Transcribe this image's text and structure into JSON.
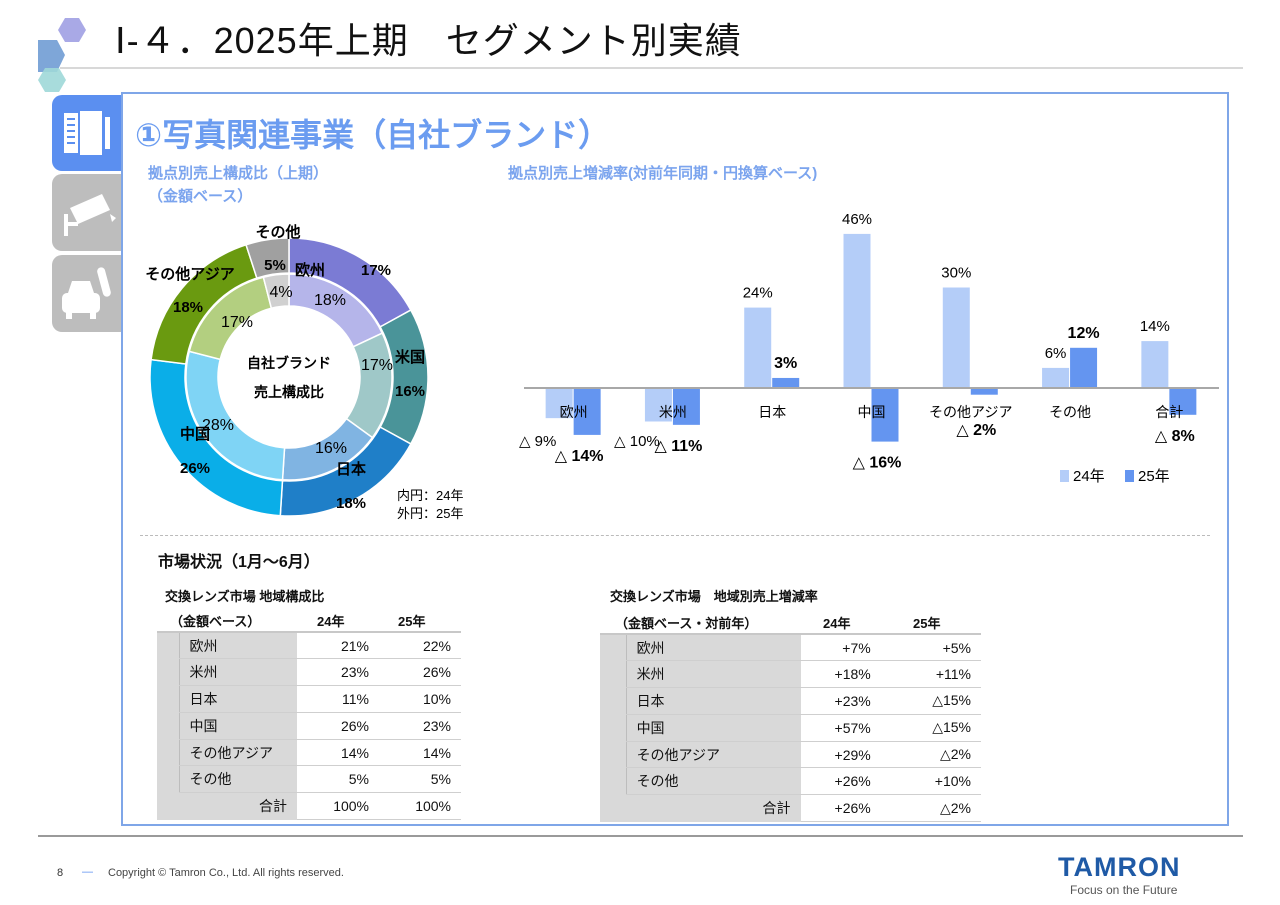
{
  "header": {
    "title": "Ⅰ-４．2025年上期　セグメント別実績"
  },
  "section": {
    "title": "①写真関連事業（自社ブランド）"
  },
  "tabs": [
    {
      "name": "photo-lens",
      "active": true
    },
    {
      "name": "surveillance-camera",
      "active": false
    },
    {
      "name": "mobility",
      "active": false
    }
  ],
  "colors": {
    "accent": "#5b8ff0",
    "title_blue": "#6b9cf0",
    "bar_24": "#b4cdf8",
    "bar_25": "#6495f0"
  },
  "donut_subtitle_1": "拠点別売上構成比（上期）",
  "donut_subtitle_2": "（金額ベース）",
  "bar_subtitle": "拠点別売上増減率(対前年同期・円換算ベース)",
  "chart_data": [
    {
      "type": "pie",
      "variant": "donut",
      "center_label_1": "自社ブランド",
      "center_label_2": "売上構成比",
      "note_inner": "内円：24年",
      "note_outer": "外円：25年",
      "categories": [
        "欧州",
        "米国",
        "日本",
        "中国",
        "その他アジア",
        "その他"
      ],
      "series": [
        {
          "name": "24年",
          "ring": "inner",
          "values": [
            18,
            17,
            16,
            28,
            17,
            4
          ],
          "labels": [
            "18%",
            "17%",
            "16%",
            "28%",
            "17%",
            "4%"
          ],
          "colors": [
            "#b5b5ea",
            "#9fc8c8",
            "#80b4e2",
            "#7fd4f5",
            "#b3cf80",
            "#d0d0d0"
          ]
        },
        {
          "name": "25年",
          "ring": "outer",
          "values": [
            17,
            16,
            18,
            26,
            18,
            5
          ],
          "labels": [
            "17%",
            "16%",
            "18%",
            "26%",
            "18%",
            "5%"
          ],
          "colors": [
            "#7b7bd4",
            "#4a9499",
            "#1f7fc8",
            "#0aaee8",
            "#6a9a10",
            "#a0a0a0"
          ]
        }
      ]
    },
    {
      "type": "bar",
      "categories": [
        "欧州",
        "米州",
        "日本",
        "中国",
        "その他アジア",
        "その他",
        "合計"
      ],
      "series": [
        {
          "name": "24年",
          "values": [
            -9,
            -10,
            24,
            46,
            30,
            6,
            14
          ],
          "labels": [
            "△ 9%",
            "△ 10%",
            "24%",
            "46%",
            "30%",
            "6%",
            "14%"
          ]
        },
        {
          "name": "25年",
          "values": [
            -14,
            -11,
            3,
            -16,
            -2,
            12,
            -8
          ],
          "labels": [
            "△ 14%",
            "△ 11%",
            "3%",
            "△ 16%",
            "△ 2%",
            "12%",
            "△ 8%"
          ]
        }
      ],
      "legend": [
        "24年",
        "25年"
      ],
      "legend_position": "bottom-right",
      "grid": false
    }
  ],
  "market": {
    "title": "市場状況（1月～6月）",
    "composition": {
      "title": "交換レンズ市場 地域構成比",
      "subtitle": "（金額ベース）",
      "col1": "24年",
      "col2": "25年",
      "rows": [
        [
          "欧州",
          "21%",
          "22%"
        ],
        [
          "米州",
          "23%",
          "26%"
        ],
        [
          "日本",
          "11%",
          "10%"
        ],
        [
          "中国",
          "26%",
          "23%"
        ],
        [
          "その他アジア",
          "14%",
          "14%"
        ],
        [
          "その他",
          "5%",
          "5%"
        ]
      ],
      "total": [
        "合計",
        "100%",
        "100%"
      ]
    },
    "growth": {
      "title": "交換レンズ市場　地域別売上増減率",
      "subtitle": "（金額ベース・対前年）",
      "col1": "24年",
      "col2": "25年",
      "rows": [
        [
          "欧州",
          "+7%",
          "+5%"
        ],
        [
          "米州",
          "+18%",
          "+11%"
        ],
        [
          "日本",
          "+23%",
          "△15%"
        ],
        [
          "中国",
          "+57%",
          "△15%"
        ],
        [
          "その他アジア",
          "+29%",
          "△2%"
        ],
        [
          "その他",
          "+26%",
          "+10%"
        ]
      ],
      "total": [
        "合計",
        "+26%",
        "△2%"
      ]
    }
  },
  "footer": {
    "page": "8",
    "dash": "—",
    "copyright": "Copyright © Tamron Co., Ltd. All rights reserved.",
    "logo": "TAMRON",
    "tagline": "Focus on the Future"
  }
}
